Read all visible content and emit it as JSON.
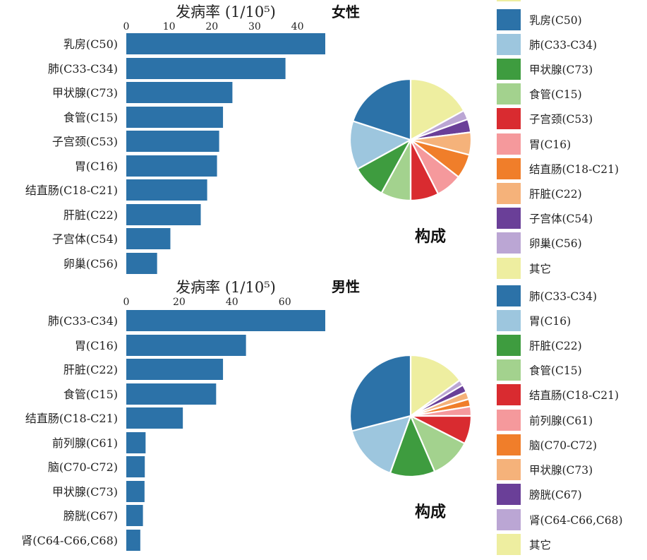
{
  "chart_data": [
    {
      "type": "bar",
      "orientation": "horizontal",
      "xlabel": "发病率 (1/10⁵)",
      "categories": [
        "乳房(C50)",
        "肺(C33-C34)",
        "甲状腺(C73)",
        "食管(C15)",
        "子宫颈(C53)",
        "胃(C16)",
        "结直肠(C18-C21)",
        "肝脏(C22)",
        "子宫体(C54)",
        "卵巢(C56)"
      ],
      "values": [
        46.5,
        37.2,
        24.8,
        22.6,
        21.7,
        21.2,
        18.9,
        17.4,
        10.3,
        7.2
      ],
      "xlim": [
        0,
        47
      ],
      "xticks": [
        0,
        10,
        20,
        30,
        40
      ],
      "grid": false,
      "color": "#2c72a8"
    },
    {
      "type": "pie",
      "group_label": "女性",
      "title": "构成",
      "legend_position": "right",
      "legend_items": [
        "乳房(C50)",
        "肺(C33-C34)",
        "甲状腺(C73)",
        "食管(C15)",
        "子宫颈(C53)",
        "胃(C16)",
        "结直肠(C18-C21)",
        "肝脏(C22)",
        "子宫体(C54)",
        "卵巢(C56)",
        "其它"
      ],
      "slices": [
        {
          "label": "其它",
          "value": 17.0,
          "color": "#eeeea0"
        },
        {
          "label": "卵巢(C56)",
          "value": 2.5,
          "color": "#bba6d4"
        },
        {
          "label": "子宫体(C54)",
          "value": 3.5,
          "color": "#6a3f98"
        },
        {
          "label": "肝脏(C22)",
          "value": 6.0,
          "color": "#f5b27a"
        },
        {
          "label": "结直肠(C18-C21)",
          "value": 6.5,
          "color": "#f07e2a"
        },
        {
          "label": "胃(C16)",
          "value": 7.0,
          "color": "#f5999c"
        },
        {
          "label": "子宫颈(C53)",
          "value": 7.5,
          "color": "#d92b30"
        },
        {
          "label": "食管(C15)",
          "value": 8.0,
          "color": "#a3d28e"
        },
        {
          "label": "甲状腺(C73)",
          "value": 9.0,
          "color": "#3e9c3f"
        },
        {
          "label": "肺(C33-C34)",
          "value": 13.0,
          "color": "#9dc6de"
        },
        {
          "label": "乳房(C50)",
          "value": 20.0,
          "color": "#2c72a8"
        }
      ]
    },
    {
      "type": "bar",
      "orientation": "horizontal",
      "xlabel": "发病率 (1/10⁵)",
      "categories": [
        "肺(C33-C34)",
        "胃(C16)",
        "肝脏(C22)",
        "食管(C15)",
        "结直肠(C18-C21)",
        "前列腺(C61)",
        "脑(C70-C72)",
        "甲状腺(C73)",
        "膀胱(C67)",
        "肾(C64-C66,C68)"
      ],
      "values": [
        75.3,
        45.3,
        36.6,
        34.0,
        21.4,
        7.3,
        7.0,
        6.9,
        6.3,
        5.3
      ],
      "xlim": [
        0,
        75
      ],
      "xticks": [
        0,
        20,
        40,
        60
      ],
      "grid": false,
      "color": "#2c72a8"
    },
    {
      "type": "pie",
      "group_label": "男性",
      "title": "构成",
      "legend_position": "right",
      "legend_items": [
        "肺(C33-C34)",
        "胃(C16)",
        "肝脏(C22)",
        "食管(C15)",
        "结直肠(C18-C21)",
        "前列腺(C61)",
        "脑(C70-C72)",
        "甲状腺(C73)",
        "膀胱(C67)",
        "肾(C64-C66,C68)",
        "其它"
      ],
      "slices": [
        {
          "label": "其它",
          "value": 15.0,
          "color": "#eeeea0"
        },
        {
          "label": "肾(C64-C66,C68)",
          "value": 1.5,
          "color": "#bba6d4"
        },
        {
          "label": "膀胱(C67)",
          "value": 2.0,
          "color": "#6a3f98"
        },
        {
          "label": "甲状腺(C73)",
          "value": 2.0,
          "color": "#f5b27a"
        },
        {
          "label": "脑(C70-C72)",
          "value": 2.0,
          "color": "#f07e2a"
        },
        {
          "label": "前列腺(C61)",
          "value": 2.5,
          "color": "#f5999c"
        },
        {
          "label": "结直肠(C18-C21)",
          "value": 7.5,
          "color": "#d92b30"
        },
        {
          "label": "食管(C15)",
          "value": 11.0,
          "color": "#a3d28e"
        },
        {
          "label": "肝脏(C22)",
          "value": 12.0,
          "color": "#3e9c3f"
        },
        {
          "label": "胃(C16)",
          "value": 15.5,
          "color": "#9dc6de"
        },
        {
          "label": "肺(C33-C34)",
          "value": 29.0,
          "color": "#2c72a8"
        }
      ]
    }
  ]
}
